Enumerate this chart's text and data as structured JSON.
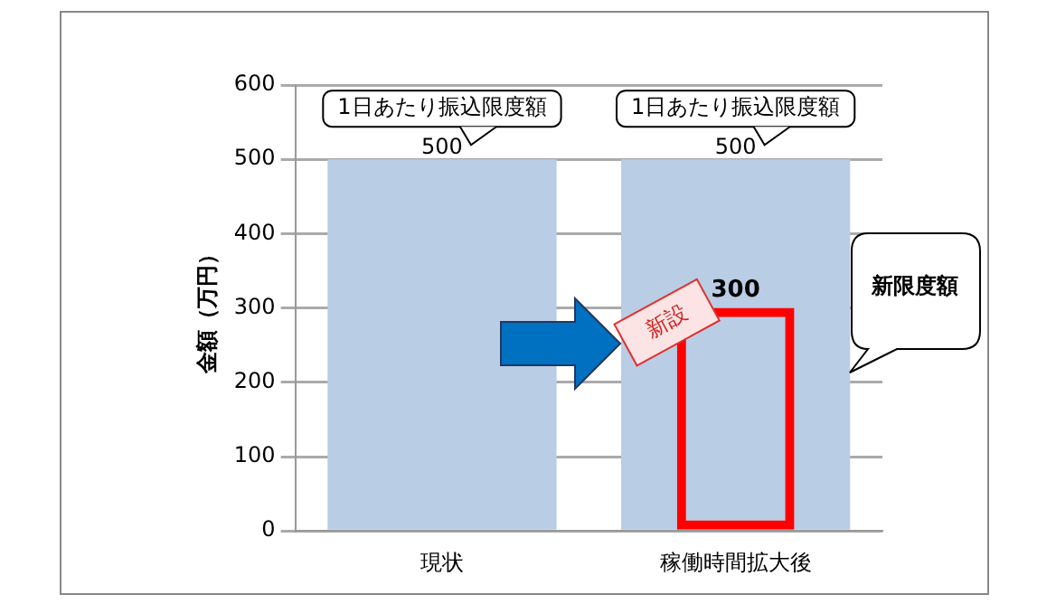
{
  "chart_data": {
    "type": "bar",
    "ylabel": "金額（万円）",
    "categories": [
      "現状",
      "稼働時間拡大後"
    ],
    "series": [
      {
        "color": "#b9cde5",
        "values": [
          500,
          500
        ],
        "value_labels": [
          "500",
          "500"
        ]
      },
      {
        "color": "#ff0000",
        "values": [
          null,
          300
        ],
        "value_labels": [
          null,
          "300"
        ]
      }
    ],
    "ylim": [
      0,
      600
    ],
    "yticks": [
      0,
      100,
      200,
      300,
      400,
      500,
      600
    ],
    "grid": "y",
    "legend": false,
    "annotations": [
      {
        "text": "1日あたり振込限度額",
        "x": "現状",
        "y": 500
      },
      {
        "text": "1日あたり振込限度額",
        "x": "稼働時間拡大後",
        "y": 500
      },
      "新限度額",
      {
        "text": "新設",
        "x": "稼働時間拡大後",
        "y": 300
      }
    ]
  }
}
